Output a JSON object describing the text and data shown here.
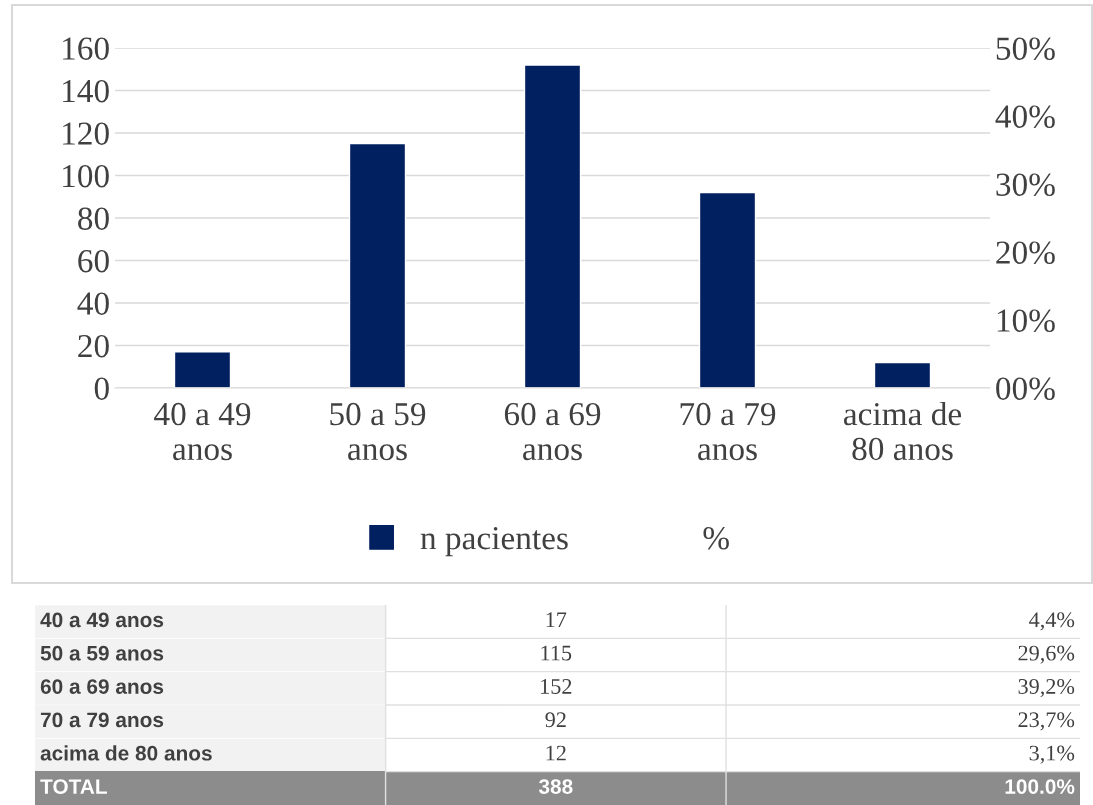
{
  "chart_data": [
    {
      "type": "bar",
      "categories": [
        "40 a 49\nanos",
        "50 a 59\nanos",
        "60 a 69\nanos",
        "70 a 79\nanos",
        "acima de\n80 anos"
      ],
      "series": [
        {
          "name": "n pacientes",
          "color": "#002060",
          "values": [
            17,
            115,
            152,
            92,
            12
          ]
        },
        {
          "name": "%",
          "axis": "y2",
          "values": [
            null,
            null,
            null,
            null,
            null
          ]
        }
      ],
      "ylim": [
        0,
        160
      ],
      "yticks": [
        0,
        20,
        40,
        60,
        80,
        100,
        120,
        140,
        160
      ],
      "y2lim": [
        0,
        50
      ],
      "y2ticks": [
        {
          "value": 0,
          "label": "00%"
        },
        {
          "value": 10,
          "label": "10%"
        },
        {
          "value": 20,
          "label": "20%"
        },
        {
          "value": 30,
          "label": "30%"
        },
        {
          "value": 40,
          "label": "40%"
        },
        {
          "value": 50,
          "label": "50%"
        }
      ],
      "grid": "y",
      "legend": "bottom"
    },
    {
      "type": "other",
      "categories": [
        "40 a 49 anos",
        "50 a 59 anos",
        "60 a 69 anos",
        "70 a 79 anos",
        "acima de 80 anos"
      ],
      "series": [
        {
          "values": [
            17,
            115,
            152,
            92,
            12
          ]
        }
      ],
      "data_labels": true,
      "annotations": [
        "4,4%",
        "29,6%",
        "39,2%",
        "23,7%",
        "3,1%",
        "TOTAL",
        "388",
        "100.0%"
      ]
    }
  ]
}
